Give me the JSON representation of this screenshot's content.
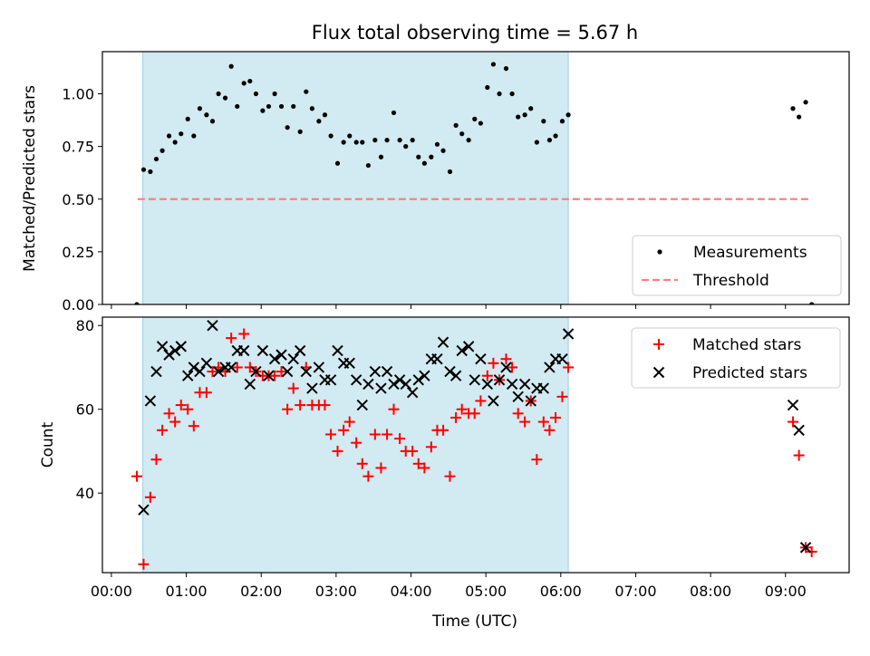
{
  "chart_data": {
    "type": "scatter",
    "title": "Flux total observing time = 5.67 h",
    "xlabel": "Time (UTC)",
    "x_tick_labels": [
      "00:00",
      "01:00",
      "02:00",
      "03:00",
      "04:00",
      "05:00",
      "06:00",
      "07:00",
      "08:00",
      "09:00"
    ],
    "xlim_hours": [
      -0.12,
      9.85
    ],
    "highlight_span_hours": [
      0.42,
      6.1
    ],
    "highlight_color": "#add8e6",
    "panels": [
      {
        "id": "ratio",
        "ylabel": "Matched/Predicted stars",
        "ylim": [
          0,
          1.2
        ],
        "y_ticks": [
          "0.00",
          "0.25",
          "0.50",
          "0.75",
          "1.00"
        ],
        "threshold": {
          "name": "Threshold",
          "value": 0.5,
          "x_range_hours": [
            0.35,
            9.35
          ],
          "color": "#ff7f7f"
        },
        "legend": {
          "position": "lower right",
          "entries": [
            "Measurements",
            "Threshold"
          ]
        },
        "series": [
          {
            "name": "Measurements",
            "color": "#000000",
            "marker": "dot",
            "x_hours": [
              0.34,
              0.43,
              0.52,
              0.6,
              0.68,
              0.77,
              0.85,
              0.93,
              1.02,
              1.1,
              1.18,
              1.27,
              1.35,
              1.43,
              1.52,
              1.6,
              1.68,
              1.77,
              1.85,
              1.93,
              2.02,
              2.1,
              2.18,
              2.27,
              2.35,
              2.43,
              2.52,
              2.6,
              2.68,
              2.77,
              2.85,
              2.93,
              3.02,
              3.1,
              3.18,
              3.27,
              3.35,
              3.43,
              3.52,
              3.6,
              3.68,
              3.77,
              3.85,
              3.93,
              4.02,
              4.1,
              4.18,
              4.27,
              4.35,
              4.43,
              4.52,
              4.6,
              4.68,
              4.77,
              4.85,
              4.93,
              5.02,
              5.1,
              5.18,
              5.27,
              5.35,
              5.43,
              5.52,
              5.6,
              5.68,
              5.77,
              5.85,
              5.93,
              6.02,
              6.1,
              9.1,
              9.18,
              9.27,
              9.35
            ],
            "y": [
              0.0,
              0.64,
              0.63,
              0.69,
              0.73,
              0.8,
              0.77,
              0.81,
              0.88,
              0.8,
              0.93,
              0.9,
              0.87,
              1.0,
              0.98,
              1.13,
              0.94,
              1.05,
              1.06,
              1.0,
              0.92,
              0.94,
              1.0,
              0.94,
              0.84,
              0.94,
              0.82,
              1.01,
              0.93,
              0.87,
              0.9,
              0.8,
              0.67,
              0.77,
              0.8,
              0.77,
              0.77,
              0.66,
              0.78,
              0.7,
              0.78,
              0.91,
              0.78,
              0.75,
              0.78,
              0.7,
              0.67,
              0.7,
              0.76,
              0.73,
              0.63,
              0.85,
              0.81,
              0.78,
              0.88,
              0.86,
              1.03,
              1.14,
              1.0,
              1.12,
              1.0,
              0.89,
              0.9,
              0.93,
              0.77,
              0.87,
              0.78,
              0.8,
              0.87,
              0.9,
              0.93,
              0.89,
              0.96,
              0.0
            ]
          }
        ]
      },
      {
        "id": "counts",
        "ylabel": "Count",
        "ylim": [
          21,
          82
        ],
        "y_ticks": [
          "40",
          "60",
          "80"
        ],
        "legend": {
          "position": "upper right",
          "entries": [
            "Matched stars",
            "Predicted stars"
          ]
        },
        "series": [
          {
            "name": "Matched stars",
            "color": "#ff0000",
            "marker": "plus",
            "x_hours": [
              0.34,
              0.43,
              0.52,
              0.6,
              0.68,
              0.77,
              0.85,
              0.93,
              1.02,
              1.1,
              1.18,
              1.27,
              1.35,
              1.43,
              1.52,
              1.6,
              1.68,
              1.77,
              1.85,
              1.93,
              2.02,
              2.1,
              2.18,
              2.27,
              2.35,
              2.43,
              2.52,
              2.6,
              2.68,
              2.77,
              2.85,
              2.93,
              3.02,
              3.1,
              3.18,
              3.27,
              3.35,
              3.43,
              3.52,
              3.6,
              3.68,
              3.77,
              3.85,
              3.93,
              4.02,
              4.1,
              4.18,
              4.27,
              4.35,
              4.43,
              4.52,
              4.6,
              4.68,
              4.77,
              4.85,
              4.93,
              5.02,
              5.1,
              5.18,
              5.27,
              5.35,
              5.43,
              5.52,
              5.6,
              5.68,
              5.77,
              5.85,
              5.93,
              6.02,
              6.1,
              9.1,
              9.18,
              9.27,
              9.35
            ],
            "y": [
              44,
              23,
              39,
              48,
              55,
              59,
              57,
              61,
              60,
              56,
              64,
              64,
              69,
              70,
              69,
              77,
              70,
              78,
              70,
              69,
              68,
              68,
              68,
              69,
              60,
              65,
              61,
              70,
              61,
              61,
              61,
              54,
              50,
              55,
              57,
              52,
              47,
              44,
              54,
              46,
              54,
              60,
              53,
              50,
              50,
              47,
              46,
              51,
              55,
              55,
              44,
              58,
              60,
              59,
              59,
              62,
              68,
              71,
              67,
              72,
              70,
              59,
              57,
              62,
              48,
              57,
              55,
              58,
              63,
              70,
              57,
              49,
              27,
              26
            ]
          },
          {
            "name": "Predicted stars",
            "color": "#000000",
            "marker": "x",
            "x_hours": [
              0.43,
              0.52,
              0.6,
              0.68,
              0.77,
              0.85,
              0.93,
              1.02,
              1.1,
              1.18,
              1.27,
              1.35,
              1.43,
              1.52,
              1.6,
              1.68,
              1.77,
              1.85,
              1.93,
              2.02,
              2.1,
              2.18,
              2.27,
              2.35,
              2.43,
              2.52,
              2.6,
              2.68,
              2.77,
              2.85,
              2.93,
              3.02,
              3.1,
              3.18,
              3.27,
              3.35,
              3.43,
              3.52,
              3.6,
              3.68,
              3.77,
              3.85,
              3.93,
              4.02,
              4.1,
              4.18,
              4.27,
              4.35,
              4.43,
              4.52,
              4.6,
              4.68,
              4.77,
              4.85,
              4.93,
              5.02,
              5.1,
              5.18,
              5.27,
              5.35,
              5.43,
              5.52,
              5.6,
              5.68,
              5.77,
              5.85,
              5.93,
              6.02,
              6.1,
              9.1,
              9.18,
              9.27
            ],
            "y": [
              36,
              62,
              69,
              75,
              73,
              74,
              75,
              68,
              70,
              69,
              71,
              80,
              69,
              70,
              70,
              74,
              74,
              66,
              69,
              74,
              68,
              72,
              73,
              69,
              72,
              74,
              69,
              65,
              70,
              67,
              67,
              74,
              71,
              71,
              67,
              61,
              66,
              69,
              65,
              69,
              66,
              67,
              66,
              64,
              67,
              68,
              72,
              72,
              76,
              69,
              68,
              74,
              75,
              67,
              72,
              66,
              62,
              67,
              70,
              66,
              63,
              66,
              62,
              65,
              65,
              70,
              72,
              72,
              78,
              61,
              55,
              27
            ]
          }
        ]
      }
    ]
  }
}
